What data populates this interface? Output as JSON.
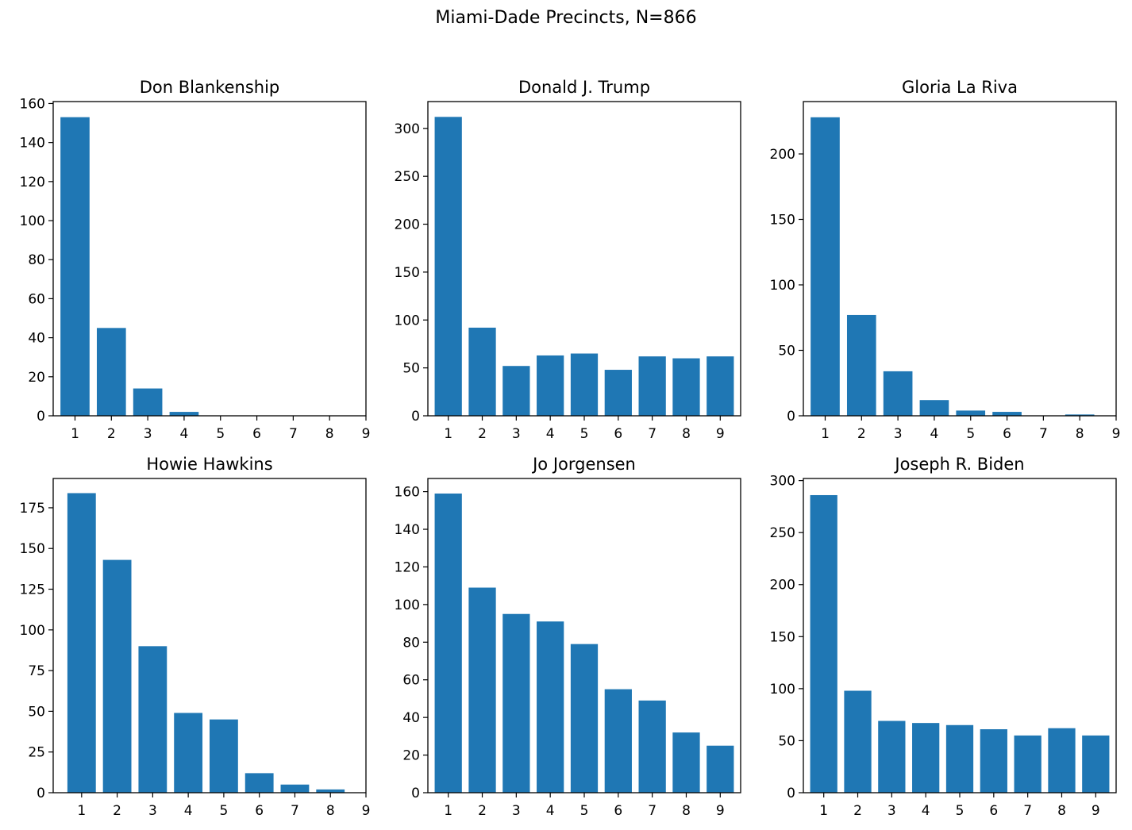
{
  "suptitle": "Miami-Dade Precincts, N=866",
  "bar_color": "#1f77b4",
  "chart_data": [
    {
      "type": "bar",
      "title": "Don Blankenship",
      "categories": [
        "1",
        "2",
        "3",
        "4",
        "5",
        "6",
        "7",
        "8",
        "9"
      ],
      "values": [
        153,
        45,
        14,
        2,
        0,
        0,
        0,
        0,
        0
      ],
      "xticks": [
        "1",
        "2",
        "3",
        "4",
        "5",
        "6",
        "7",
        "8",
        "9"
      ],
      "xlim": [
        0.4,
        9.0
      ],
      "ylim": [
        0,
        161
      ],
      "yticks": [
        0,
        20,
        40,
        60,
        80,
        100,
        120,
        140,
        160
      ],
      "xlabel": "",
      "ylabel": ""
    },
    {
      "type": "bar",
      "title": "Donald J. Trump",
      "categories": [
        "1",
        "2",
        "3",
        "4",
        "5",
        "6",
        "7",
        "8",
        "9"
      ],
      "values": [
        312,
        92,
        52,
        63,
        65,
        48,
        62,
        60,
        62
      ],
      "xticks": [
        "1",
        "2",
        "3",
        "4",
        "5",
        "6",
        "7",
        "8",
        "9"
      ],
      "xlim": [
        0.4,
        9.6
      ],
      "ylim": [
        0,
        328
      ],
      "yticks": [
        0,
        50,
        100,
        150,
        200,
        250,
        300
      ],
      "xlabel": "",
      "ylabel": ""
    },
    {
      "type": "bar",
      "title": "Gloria La Riva",
      "categories": [
        "1",
        "2",
        "3",
        "4",
        "5",
        "6",
        "7",
        "8",
        "9"
      ],
      "values": [
        228,
        77,
        34,
        12,
        4,
        3,
        0,
        1,
        0
      ],
      "xticks": [
        "1",
        "2",
        "3",
        "4",
        "5",
        "6",
        "7",
        "8",
        "9"
      ],
      "xlim": [
        0.4,
        9.0
      ],
      "ylim": [
        0,
        240
      ],
      "yticks": [
        0,
        50,
        100,
        150,
        200
      ],
      "xlabel": "",
      "ylabel": ""
    },
    {
      "type": "bar",
      "title": "Howie Hawkins",
      "categories": [
        "1",
        "2",
        "3",
        "4",
        "5",
        "6",
        "7",
        "8",
        "9"
      ],
      "values": [
        184,
        143,
        90,
        49,
        45,
        12,
        5,
        2,
        0
      ],
      "xticks": [
        "1",
        "2",
        "3",
        "4",
        "5",
        "6",
        "7",
        "8",
        "9"
      ],
      "xlim": [
        0.2,
        9.0
      ],
      "ylim": [
        0,
        193
      ],
      "yticks": [
        0,
        25,
        50,
        75,
        100,
        125,
        150,
        175
      ],
      "xlabel": "",
      "ylabel": ""
    },
    {
      "type": "bar",
      "title": "Jo Jorgensen",
      "categories": [
        "1",
        "2",
        "3",
        "4",
        "5",
        "6",
        "7",
        "8",
        "9"
      ],
      "values": [
        159,
        109,
        95,
        91,
        79,
        55,
        49,
        32,
        25
      ],
      "xticks": [
        "1",
        "2",
        "3",
        "4",
        "5",
        "6",
        "7",
        "8",
        "9"
      ],
      "xlim": [
        0.4,
        9.6
      ],
      "ylim": [
        0,
        167
      ],
      "yticks": [
        0,
        20,
        40,
        60,
        80,
        100,
        120,
        140,
        160
      ],
      "xlabel": "",
      "ylabel": ""
    },
    {
      "type": "bar",
      "title": "Joseph R. Biden",
      "categories": [
        "1",
        "2",
        "3",
        "4",
        "5",
        "6",
        "7",
        "8",
        "9"
      ],
      "values": [
        286,
        98,
        69,
        67,
        65,
        61,
        55,
        62,
        55
      ],
      "xticks": [
        "1",
        "2",
        "3",
        "4",
        "5",
        "6",
        "7",
        "8",
        "9"
      ],
      "xlim": [
        0.4,
        9.6
      ],
      "ylim": [
        0,
        302
      ],
      "yticks": [
        0,
        50,
        100,
        150,
        200,
        250,
        300
      ],
      "xlabel": "",
      "ylabel": ""
    }
  ]
}
